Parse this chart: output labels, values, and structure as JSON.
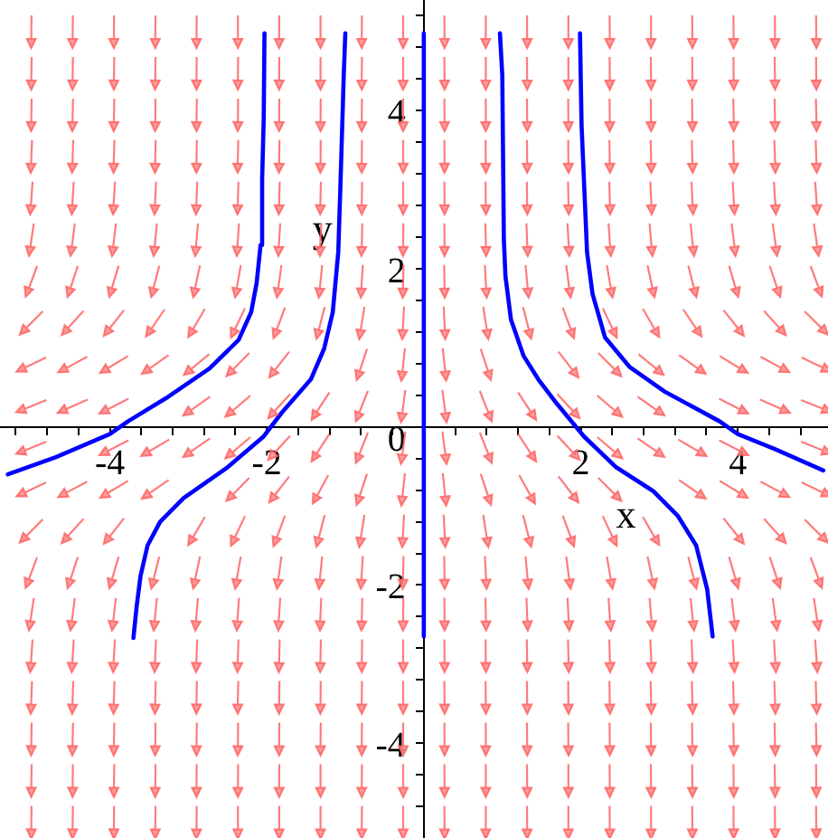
{
  "chart_data": {
    "type": "line",
    "xlabel": "x",
    "ylabel": "y",
    "xlim": [
      -5.4,
      5.15
    ],
    "ylim": [
      -5.2,
      5.4
    ],
    "xticks": [
      {
        "value": -5.2,
        "label": null
      },
      {
        "value": -4.8,
        "label": null
      },
      {
        "value": -4.4,
        "label": null
      },
      -4,
      {
        "value": -3.6,
        "label": null
      },
      {
        "value": -3.2,
        "label": null
      },
      {
        "value": -2.8,
        "label": null
      },
      {
        "value": -2.4,
        "label": null
      },
      -2,
      {
        "value": -1.6,
        "label": null
      },
      {
        "value": -1.2,
        "label": null
      },
      {
        "value": -0.8,
        "label": null
      },
      {
        "value": -0.4,
        "label": null
      },
      {
        "value": 0.4,
        "label": null
      },
      {
        "value": 0.8,
        "label": null
      },
      {
        "value": 1.2,
        "label": null
      },
      {
        "value": 1.6,
        "label": null
      },
      2,
      {
        "value": 2.4,
        "label": null
      },
      {
        "value": 2.8,
        "label": null
      },
      {
        "value": 3.2,
        "label": null
      },
      {
        "value": 3.6,
        "label": null
      },
      4,
      {
        "value": 4.4,
        "label": null
      },
      {
        "value": 4.8,
        "label": null
      }
    ],
    "yticks": [
      {
        "value": -4.8,
        "label": null
      },
      {
        "value": -4.4,
        "label": null
      },
      -4,
      {
        "value": -3.6,
        "label": null
      },
      {
        "value": -3.2,
        "label": null
      },
      {
        "value": -2.8,
        "label": null
      },
      {
        "value": -2.4,
        "label": null
      },
      -2,
      {
        "value": -1.6,
        "label": null
      },
      {
        "value": -1.2,
        "label": null
      },
      {
        "value": -0.8,
        "label": null
      },
      {
        "value": -0.4,
        "label": null
      },
      0,
      {
        "value": 0.4,
        "label": null
      },
      {
        "value": 0.8,
        "label": null
      },
      {
        "value": 1.2,
        "label": null
      },
      {
        "value": 1.6,
        "label": null
      },
      2,
      {
        "value": 2.4,
        "label": null
      },
      {
        "value": 2.8,
        "label": null
      },
      {
        "value": 3.2,
        "label": null
      },
      {
        "value": 3.6,
        "label": null
      },
      4,
      {
        "value": 4.4,
        "label": null
      },
      {
        "value": 4.8,
        "label": null
      },
      {
        "value": 5.2,
        "label": null
      }
    ],
    "series": [
      {
        "color": "#0000ff",
        "x": [
          -5.3,
          -4.68,
          -4.0,
          -3.77,
          -3.29,
          -2.73,
          -2.36,
          -2.2,
          -2.13,
          -2.08,
          -2.06,
          -2.04,
          -2.03
        ],
        "values": [
          -0.6,
          -0.38,
          -0.09,
          0.07,
          0.36,
          0.74,
          1.1,
          1.45,
          1.82,
          2.3,
          3.13,
          3.89,
          4.98
        ]
      },
      {
        "color": "#0000ff",
        "x": [
          -1.0,
          -1.02,
          -1.06,
          -1.09,
          -1.16,
          -1.27,
          -1.44,
          -1.81,
          -2.04,
          -2.5,
          -3.06,
          -3.36,
          -3.52,
          -3.61,
          -3.66,
          -3.7
        ],
        "values": [
          4.98,
          4.45,
          3.13,
          2.21,
          1.45,
          0.99,
          0.6,
          0.18,
          -0.12,
          -0.51,
          -0.9,
          -1.2,
          -1.5,
          -1.89,
          -2.28,
          -2.67
        ]
      },
      {
        "color": "#0000ff",
        "x": [
          0,
          0
        ],
        "values": [
          4.98,
          -2.65
        ]
      },
      {
        "color": "#0000ff",
        "x": [
          0.97,
          1.0,
          1.02,
          1.04,
          1.11,
          1.27,
          1.46,
          1.69,
          2.04,
          2.45,
          2.92,
          3.24,
          3.47,
          3.61,
          3.68
        ],
        "values": [
          4.98,
          4.45,
          2.37,
          1.91,
          1.36,
          0.9,
          0.6,
          0.3,
          -0.12,
          -0.51,
          -0.81,
          -1.13,
          -1.5,
          -2.05,
          -2.65
        ]
      },
      {
        "color": "#0000ff",
        "x": [
          1.99,
          2.01,
          2.08,
          2.15,
          2.31,
          2.62,
          3.08,
          3.77,
          4.0,
          4.47,
          5.09
        ],
        "values": [
          4.98,
          3.82,
          2.21,
          1.68,
          1.13,
          0.76,
          0.44,
          0.07,
          -0.09,
          -0.28,
          -0.55
        ]
      }
    ]
  }
}
